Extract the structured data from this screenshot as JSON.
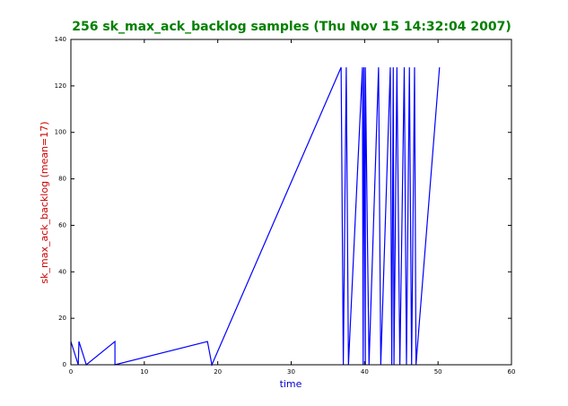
{
  "chart_data": {
    "type": "line",
    "title": "256 sk_max_ack_backlog samples (Thu Nov 15 14:32:04 2007)",
    "xlabel": "time",
    "ylabel": "sk_max_ack_backlog (mean=17)",
    "x": [
      0,
      1,
      1.1,
      2.1,
      6,
      6,
      18.6,
      19.2,
      36.8,
      37.1,
      37.5,
      37.8,
      39.7,
      39.8,
      39.9,
      40.1,
      40.1,
      40.6,
      41.9,
      42.2,
      43.5,
      43.7,
      43.9,
      44.0,
      44.4,
      44.8,
      45.4,
      45.7,
      46.1,
      46.4,
      46.8,
      47.0,
      50.2
    ],
    "series": [
      {
        "color": "#0000ff",
        "values": [
          10,
          0,
          10,
          0,
          10,
          0,
          10,
          0,
          128,
          0,
          128,
          0,
          128,
          0,
          128,
          0,
          128,
          0,
          128,
          0,
          128,
          0,
          128,
          0,
          128,
          0,
          128,
          0,
          128,
          0,
          128,
          0,
          128
        ]
      }
    ],
    "xlim": [
      0,
      60
    ],
    "xticks": [
      0,
      10,
      20,
      30,
      40,
      50,
      60
    ],
    "ylim": [
      0,
      140
    ],
    "yticks": [
      0,
      20,
      40,
      60,
      80,
      100,
      120,
      140
    ],
    "title_color": "#008000",
    "xlabel_color": "#0000cc",
    "ylabel_color": "#cc0000"
  }
}
